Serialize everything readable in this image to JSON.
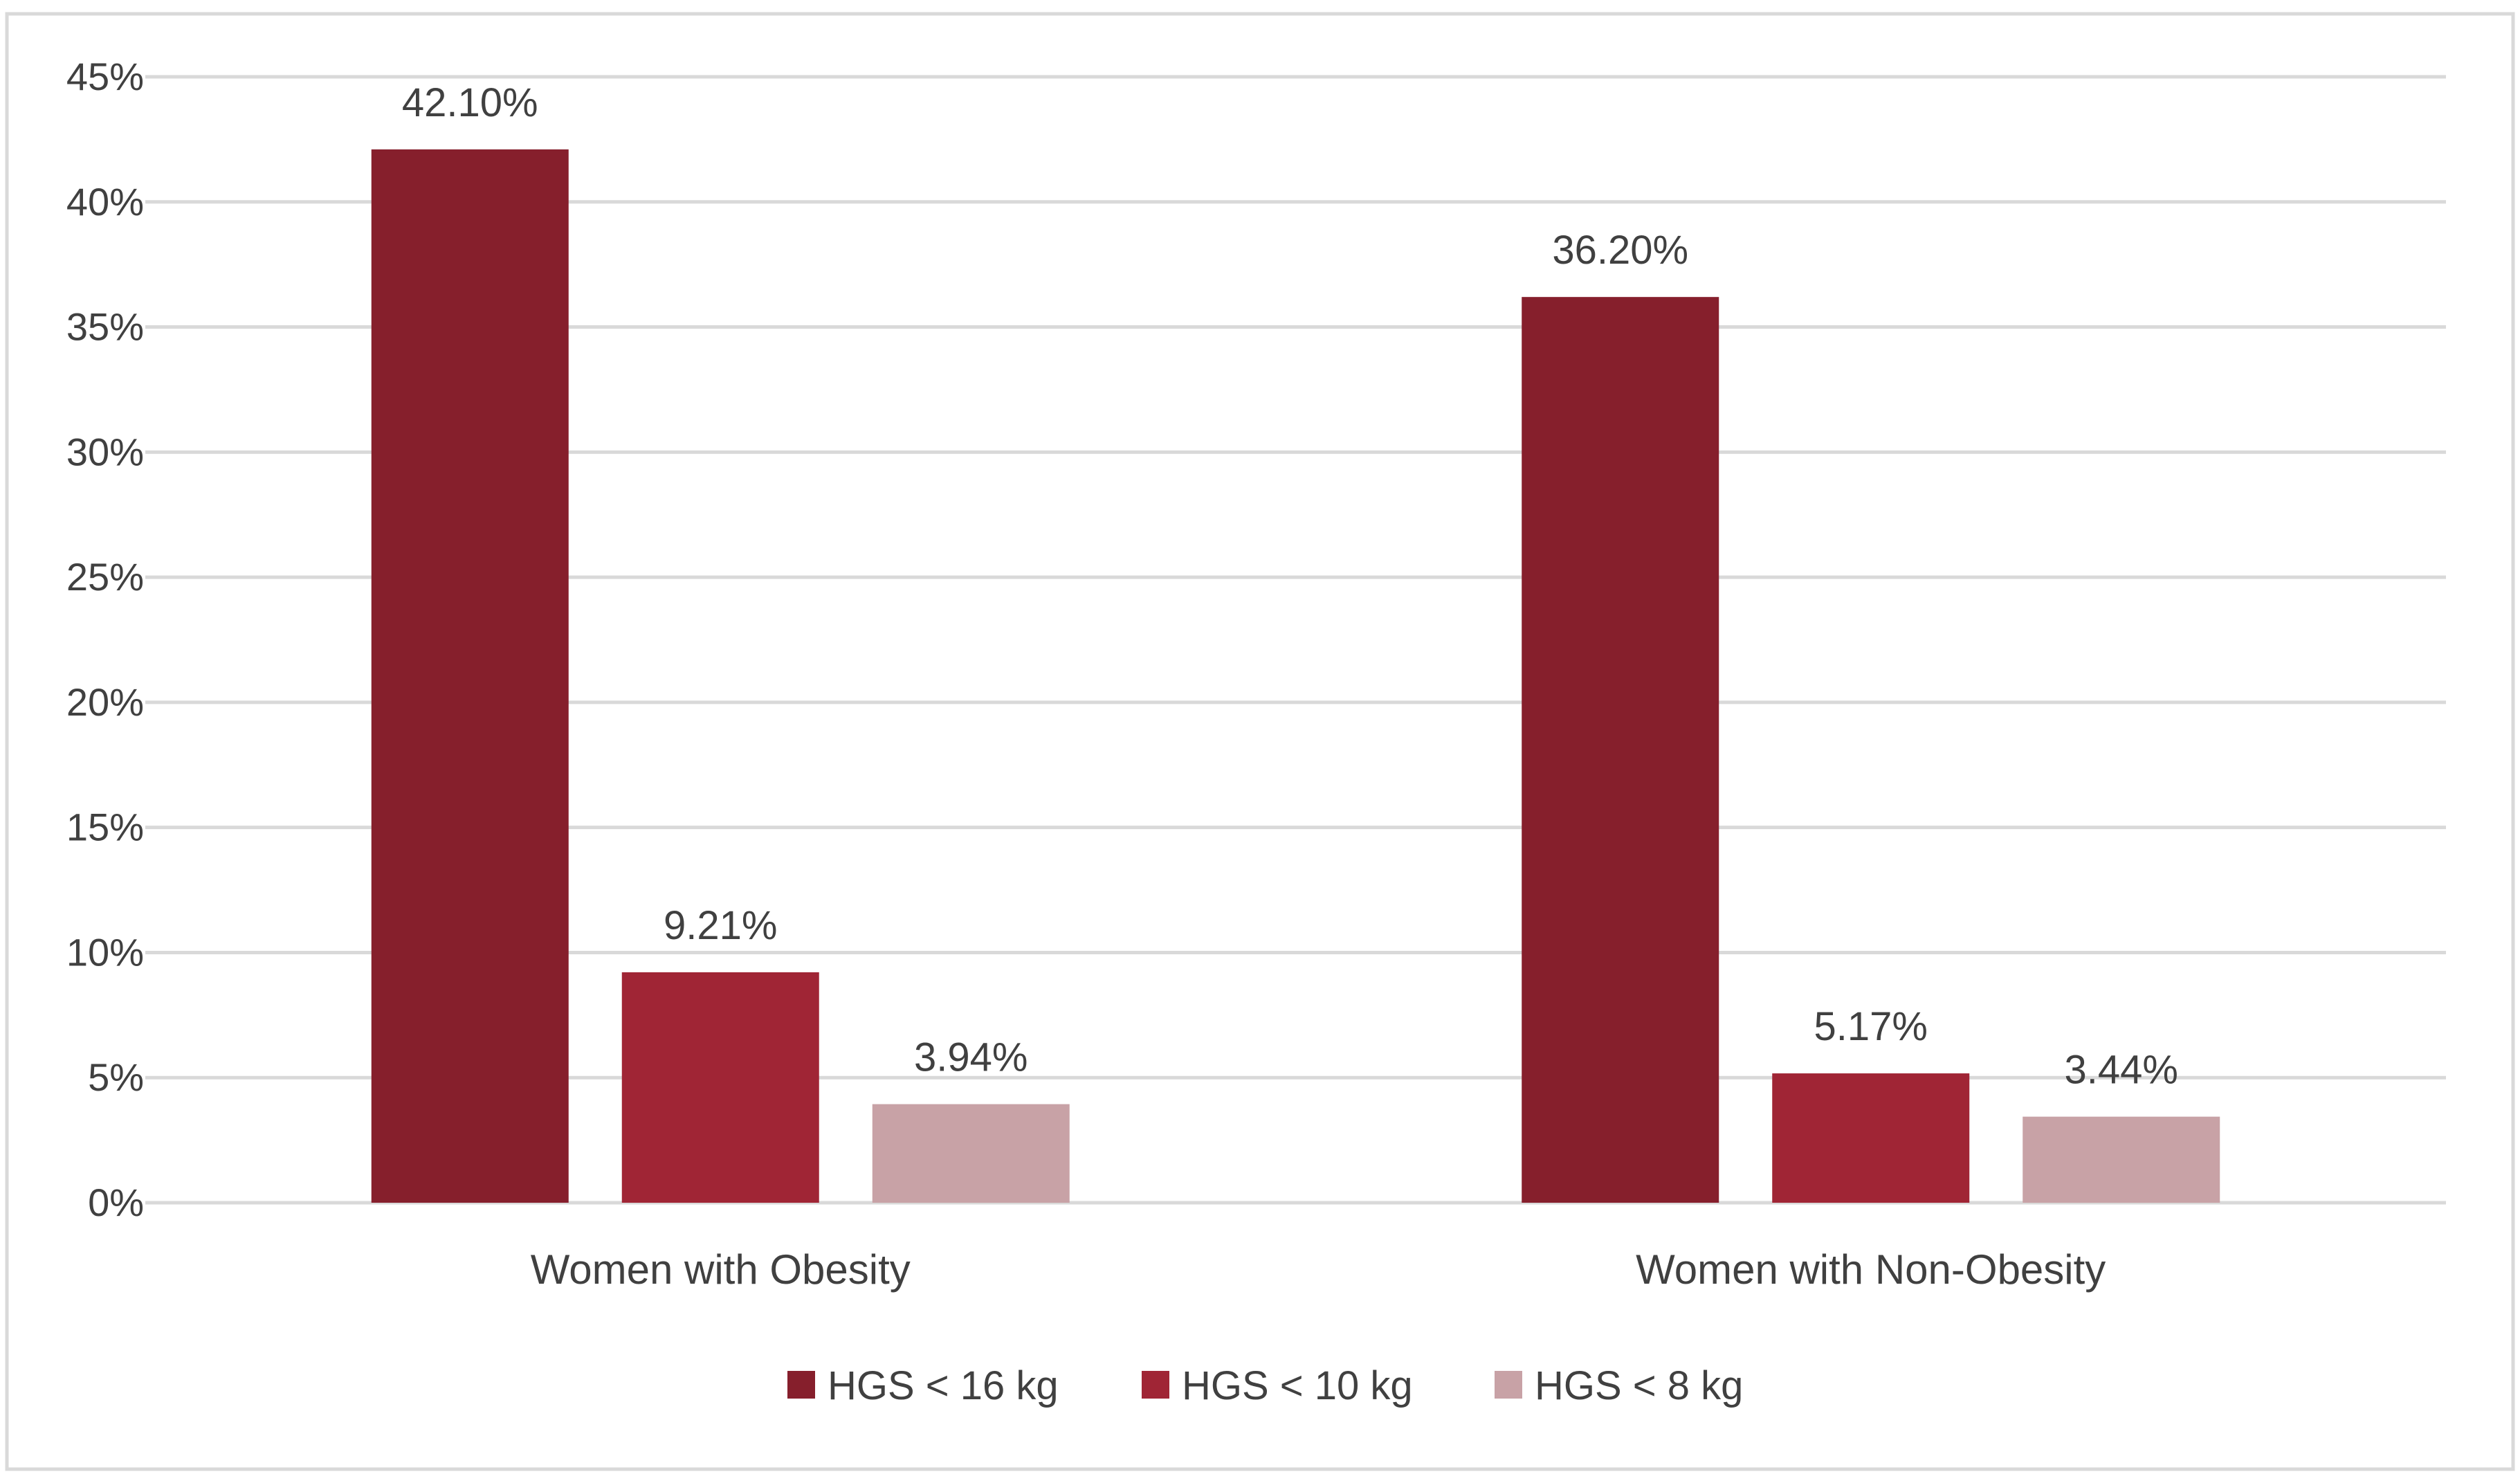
{
  "chart_data": {
    "type": "bar",
    "title": "",
    "xlabel": "",
    "ylabel": "",
    "ylim": [
      0,
      45
    ],
    "ytick_step": 5,
    "ytick_suffix": "%",
    "grid": true,
    "legend_position": "bottom",
    "categories": [
      "Women with Obesity",
      "Women with Non-Obesity"
    ],
    "series": [
      {
        "name": "HGS < 16 kg",
        "color": "#861F2C",
        "values": [
          42.1,
          36.2
        ],
        "labels": [
          "42.10%",
          "36.20%"
        ]
      },
      {
        "name": "HGS < 10 kg",
        "color": "#A02535",
        "values": [
          9.21,
          5.17
        ],
        "labels": [
          "9.21%",
          "5.17%"
        ]
      },
      {
        "name": "HGS < 8 kg",
        "color": "#C8A2A6",
        "values": [
          3.94,
          3.44
        ],
        "labels": [
          "3.94%",
          "3.44%"
        ]
      }
    ]
  }
}
